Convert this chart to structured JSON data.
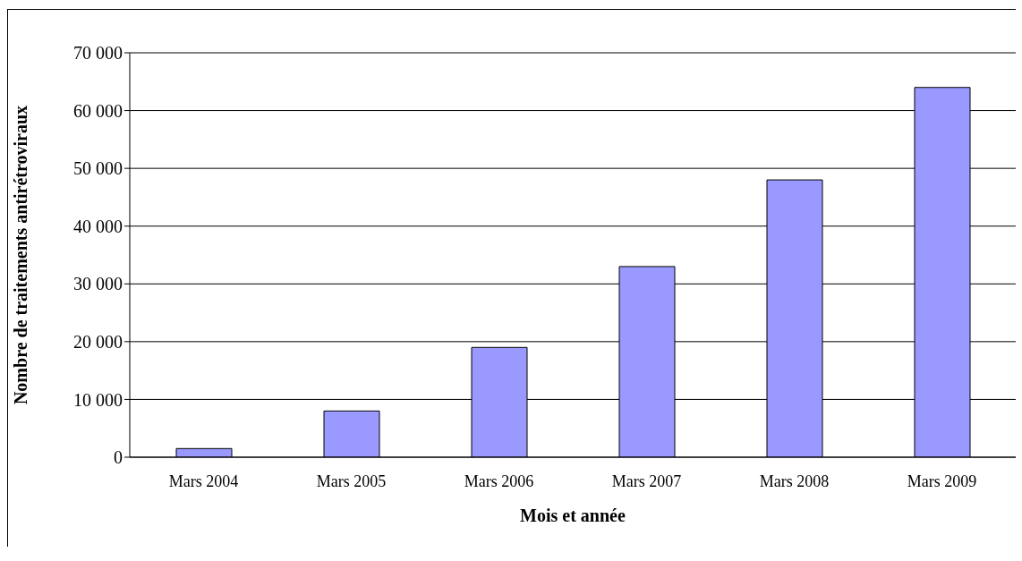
{
  "chart_data": {
    "type": "bar",
    "xlabel": "Mois et année",
    "ylabel": "Nombre de traitements antirétroviraux",
    "categories": [
      "Mars 2004",
      "Mars 2005",
      "Mars 2006",
      "Mars 2007",
      "Mars 2008",
      "Mars 2009"
    ],
    "values": [
      1500,
      8000,
      19000,
      33000,
      48000,
      64000
    ],
    "color": "#9999ff",
    "ylim": [
      0,
      70000
    ],
    "yticks": [
      {
        "value": 0,
        "label": "0"
      },
      {
        "value": 10000,
        "label": "10 000"
      },
      {
        "value": 20000,
        "label": "20 000"
      },
      {
        "value": 30000,
        "label": "30 000"
      },
      {
        "value": 40000,
        "label": "40 000"
      },
      {
        "value": 50000,
        "label": "50 000"
      },
      {
        "value": 60000,
        "label": "60 000"
      },
      {
        "value": 70000,
        "label": "70 000"
      }
    ],
    "grid": "y",
    "legend": false
  }
}
